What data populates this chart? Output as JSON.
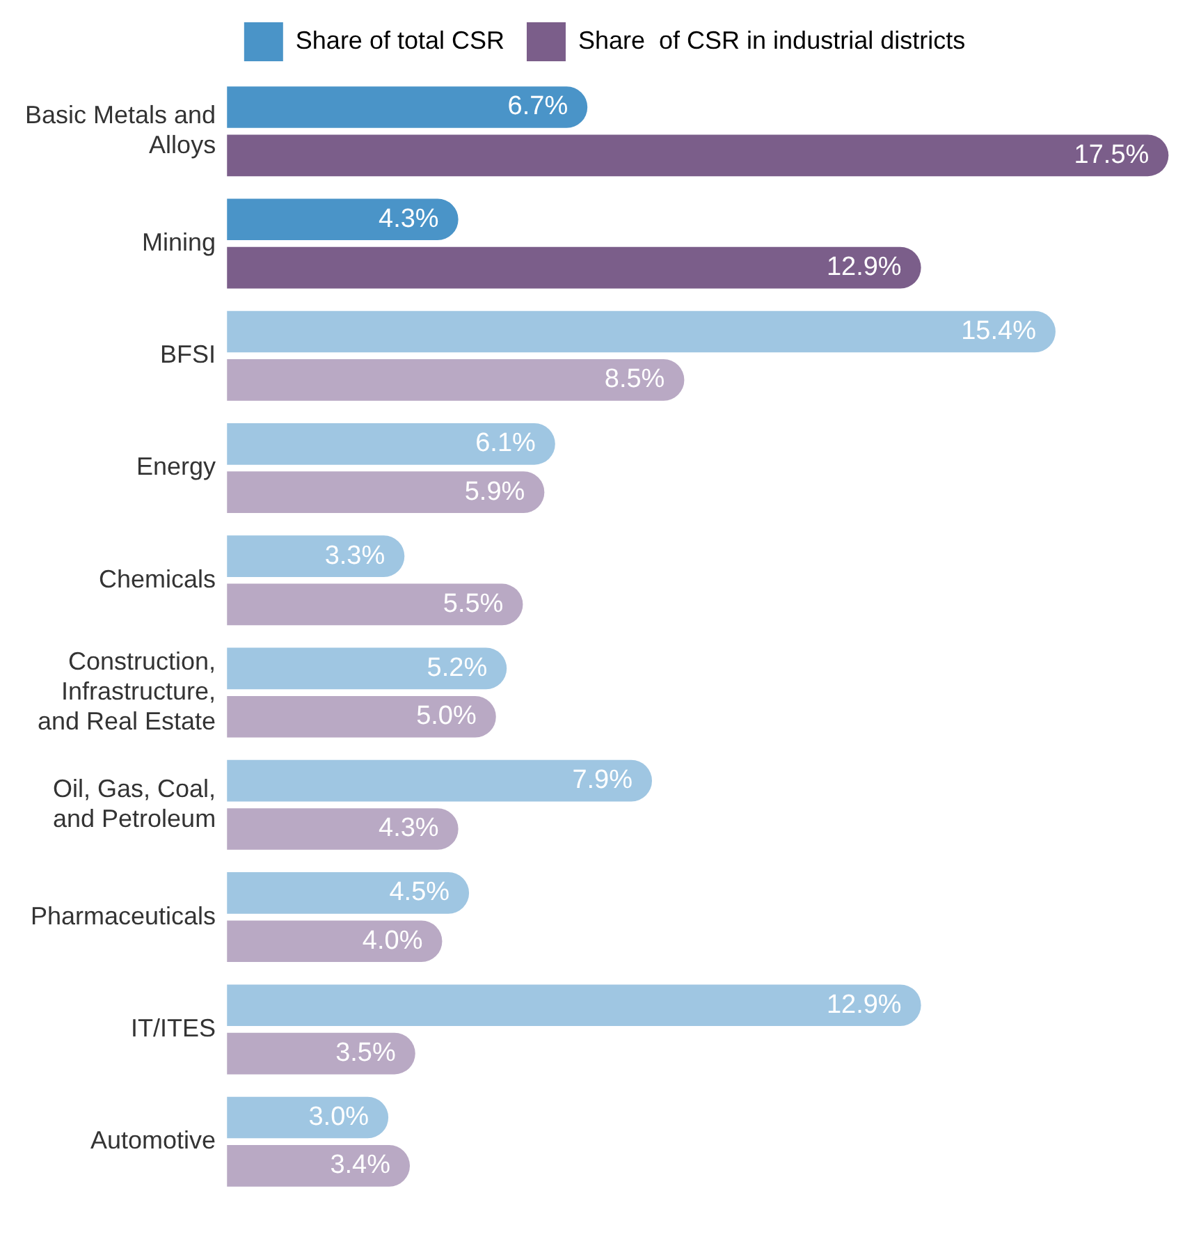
{
  "chart_data": {
    "type": "bar",
    "orientation": "horizontal",
    "data_labels": true,
    "legend": "top",
    "grid": false,
    "categories": [
      "Basic Metals and Alloys",
      "Mining",
      "BFSI",
      "Energy",
      "Chemicals",
      "Construction, Infrastructure, and Real Estate",
      "Oil, Gas, Coal, and Petroleum",
      "Pharmaceuticals",
      "IT/ITES",
      "Automotive"
    ],
    "series": [
      {
        "name": "Share of total CSR",
        "color": "#4a94c8",
        "colors": [
          "#4a94c8",
          "#4a94c8",
          "#9fc6e2",
          "#9fc6e2",
          "#9fc6e2",
          "#9fc6e2",
          "#9fc6e2",
          "#9fc6e2",
          "#9fc6e2",
          "#9fc6e2"
        ],
        "values": [
          6.7,
          4.3,
          15.4,
          6.1,
          3.3,
          5.2,
          7.9,
          4.5,
          12.9,
          3.0
        ],
        "value_labels": [
          "6.7%",
          "4.3%",
          "15.4%",
          "6.1%",
          "3.3%",
          "5.2%",
          "7.9%",
          "4.5%",
          "12.9%",
          "3.0%"
        ]
      },
      {
        "name": "Share  of CSR in industrial districts",
        "color": "#7b5e8a",
        "colors": [
          "#7b5e8a",
          "#7b5e8a",
          "#b9a9c4",
          "#b9a9c4",
          "#b9a9c4",
          "#b9a9c4",
          "#b9a9c4",
          "#b9a9c4",
          "#b9a9c4",
          "#b9a9c4"
        ],
        "values": [
          17.5,
          12.9,
          8.5,
          5.9,
          5.5,
          5.0,
          4.3,
          4.0,
          3.5,
          3.4
        ],
        "value_labels": [
          "17.5%",
          "12.9%",
          "8.5%",
          "5.9%",
          "5.5%",
          "5.0%",
          "4.3%",
          "4.0%",
          "3.5%",
          "3.4%"
        ]
      }
    ]
  }
}
